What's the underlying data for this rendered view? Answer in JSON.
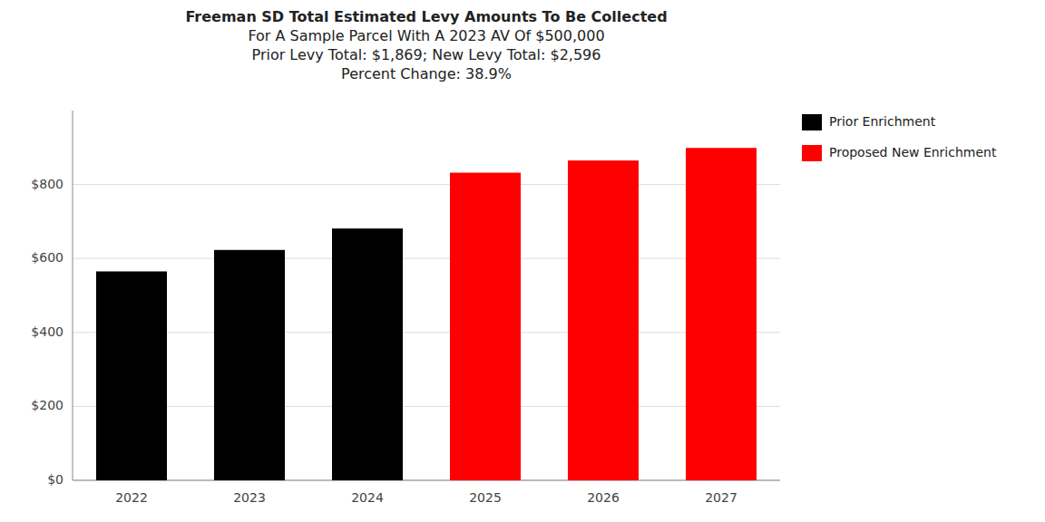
{
  "chart_data": {
    "type": "bar",
    "title": "Freeman SD Total Estimated Levy Amounts To Be Collected\nFor A Sample Parcel With A 2023 AV Of $500,000\nPrior Levy Total:  $1,869; New Levy Total: $2,596\nPercent Change: 38.9%",
    "categories": [
      "2022",
      "2023",
      "2024",
      "2025",
      "2026",
      "2027"
    ],
    "series": [
      {
        "name": "Prior Enrichment",
        "color": "#000000",
        "values": [
          565,
          623,
          681,
          null,
          null,
          null
        ]
      },
      {
        "name": "Proposed New Enrichment",
        "color": "#ff0000",
        "values": [
          null,
          null,
          null,
          832,
          865,
          899
        ]
      }
    ],
    "ylim": [
      0,
      1000
    ],
    "yticks": [
      {
        "value": 0,
        "label": "$0"
      },
      {
        "value": 200,
        "label": "$200"
      },
      {
        "value": 400,
        "label": "$400"
      },
      {
        "value": 600,
        "label": "$600"
      },
      {
        "value": 800,
        "label": "$800"
      }
    ],
    "grid": true,
    "legend": "right"
  }
}
